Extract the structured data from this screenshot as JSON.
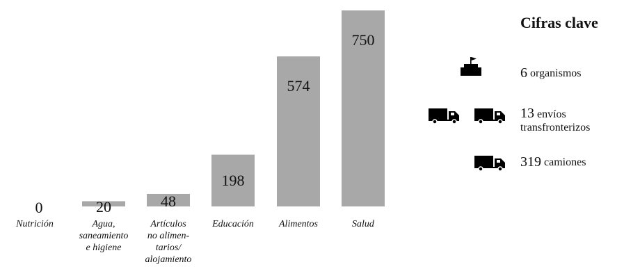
{
  "chart_data": {
    "type": "bar",
    "categories": [
      "Nutrición",
      "Agua, saneamiento e higiene",
      "Artículos no alimentarios/alojamiento",
      "Educación",
      "Alimentos",
      "Salud"
    ],
    "category_lines": [
      [
        "Nutrición"
      ],
      [
        "Agua,",
        "saneamiento",
        "e higiene"
      ],
      [
        "Artículos",
        "no alimen-",
        "tarios/",
        "alojamiento"
      ],
      [
        "Educación"
      ],
      [
        "Alimentos"
      ],
      [
        "Salud"
      ]
    ],
    "values": [
      0,
      20,
      48,
      198,
      574,
      750
    ],
    "value_labels": [
      "0",
      "20",
      "48",
      "198",
      "574",
      "750"
    ],
    "ylim": [
      0,
      750
    ],
    "bar_color": "#a8a8a8",
    "grid": false
  },
  "key": {
    "title": "Cifras clave",
    "items": [
      {
        "num": "6",
        "text": "organismos",
        "icon": "agency-building-icon"
      },
      {
        "num": "13",
        "text": "envíos",
        "text2": "transfronterizos",
        "icon": "truck-icon"
      },
      {
        "num": "319",
        "text": "camiones",
        "icon": "truck-icon"
      }
    ]
  },
  "colors": {
    "bar": "#a8a8a8",
    "icon": "#000000"
  }
}
